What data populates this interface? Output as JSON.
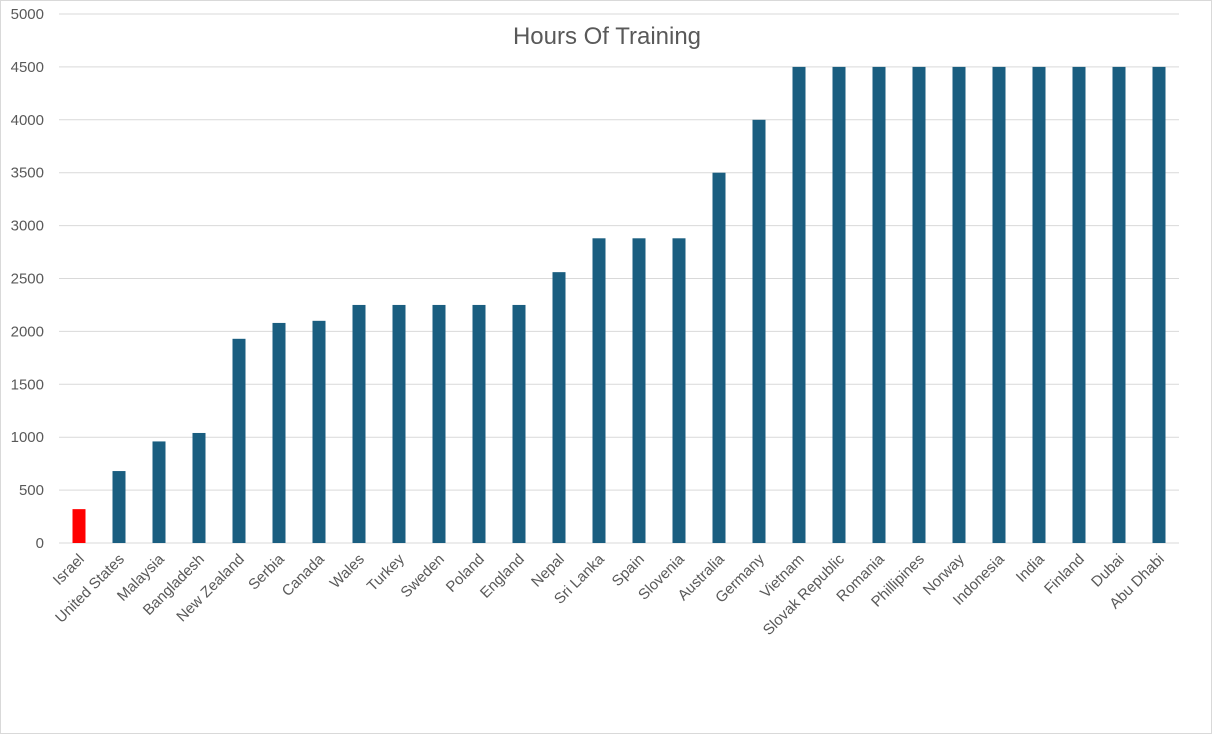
{
  "chart_data": {
    "type": "bar",
    "title": "Hours Of Training",
    "xlabel": "",
    "ylabel": "",
    "ylim": [
      0,
      5000
    ],
    "yticks": [
      0,
      500,
      1000,
      1500,
      2000,
      2500,
      3000,
      3500,
      4000,
      4500,
      5000
    ],
    "grid": true,
    "legend": "none",
    "colors": {
      "default": "#1a5e80",
      "highlight": "#ff0000",
      "grid": "#d9d9d9",
      "text": "#595959"
    },
    "highlight_categories": [
      "Israel"
    ],
    "categories": [
      "Israel",
      "United States",
      "Malaysia",
      "Bangladesh",
      "New Zealand",
      "Serbia",
      "Canada",
      "Wales",
      "Turkey",
      "Sweden",
      "Poland",
      "England",
      "Nepal",
      "Sri Lanka",
      "Spain",
      "Slovenia",
      "Australia",
      "Germany",
      "Vietnam",
      "Slovak Republic",
      "Romania",
      "Phillipines",
      "Norway",
      "Indonesia",
      "India",
      "Finland",
      "Dubai",
      "Abu Dhabi"
    ],
    "values": [
      320,
      680,
      960,
      1040,
      1930,
      2080,
      2100,
      2250,
      2250,
      2250,
      2250,
      2250,
      2560,
      2880,
      2880,
      2880,
      3500,
      4000,
      4500,
      4500,
      4500,
      4500,
      4500,
      4500,
      4500,
      4500,
      4500,
      4500
    ]
  }
}
